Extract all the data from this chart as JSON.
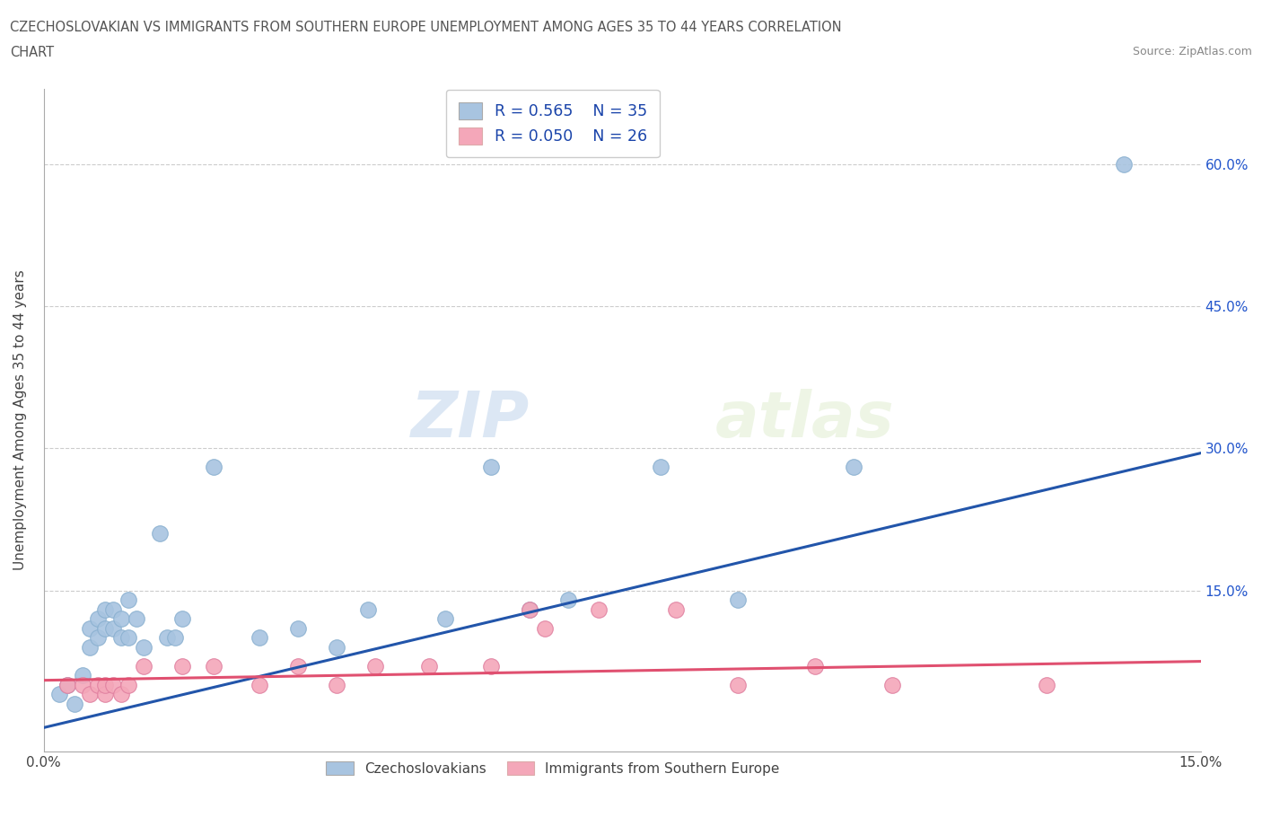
{
  "title_line1": "CZECHOSLOVAKIAN VS IMMIGRANTS FROM SOUTHERN EUROPE UNEMPLOYMENT AMONG AGES 35 TO 44 YEARS CORRELATION",
  "title_line2": "CHART",
  "source_text": "Source: ZipAtlas.com",
  "ylabel": "Unemployment Among Ages 35 to 44 years",
  "xlim": [
    0.0,
    0.15
  ],
  "ylim": [
    -0.02,
    0.68
  ],
  "xticks": [
    0.0,
    0.05,
    0.1,
    0.15
  ],
  "xtick_labels": [
    "0.0%",
    "",
    "",
    "15.0%"
  ],
  "ytick_labels_right": [
    "60.0%",
    "45.0%",
    "30.0%",
    "15.0%"
  ],
  "ytick_vals_right": [
    0.6,
    0.45,
    0.3,
    0.15
  ],
  "r_czech": 0.565,
  "n_czech": 35,
  "r_south": 0.05,
  "n_south": 26,
  "color_czech": "#a8c4e0",
  "color_south": "#f4a7b9",
  "line_color_czech": "#2255aa",
  "line_color_south": "#e05070",
  "watermark_zip": "ZIP",
  "watermark_atlas": "atlas",
  "czech_x": [
    0.002,
    0.003,
    0.004,
    0.005,
    0.006,
    0.006,
    0.007,
    0.007,
    0.008,
    0.008,
    0.009,
    0.009,
    0.01,
    0.01,
    0.011,
    0.011,
    0.012,
    0.013,
    0.015,
    0.016,
    0.017,
    0.018,
    0.022,
    0.028,
    0.033,
    0.038,
    0.042,
    0.052,
    0.058,
    0.063,
    0.068,
    0.08,
    0.09,
    0.105,
    0.14
  ],
  "czech_y": [
    0.04,
    0.05,
    0.03,
    0.06,
    0.09,
    0.11,
    0.1,
    0.12,
    0.11,
    0.13,
    0.11,
    0.13,
    0.1,
    0.12,
    0.1,
    0.14,
    0.12,
    0.09,
    0.21,
    0.1,
    0.1,
    0.12,
    0.28,
    0.1,
    0.11,
    0.09,
    0.13,
    0.12,
    0.28,
    0.13,
    0.14,
    0.28,
    0.14,
    0.28,
    0.6
  ],
  "south_x": [
    0.003,
    0.005,
    0.006,
    0.007,
    0.008,
    0.008,
    0.009,
    0.01,
    0.011,
    0.013,
    0.018,
    0.022,
    0.028,
    0.033,
    0.038,
    0.043,
    0.05,
    0.058,
    0.063,
    0.065,
    0.072,
    0.082,
    0.09,
    0.1,
    0.11,
    0.13
  ],
  "south_y": [
    0.05,
    0.05,
    0.04,
    0.05,
    0.04,
    0.05,
    0.05,
    0.04,
    0.05,
    0.07,
    0.07,
    0.07,
    0.05,
    0.07,
    0.05,
    0.07,
    0.07,
    0.07,
    0.13,
    0.11,
    0.13,
    0.13,
    0.05,
    0.07,
    0.05,
    0.05
  ]
}
